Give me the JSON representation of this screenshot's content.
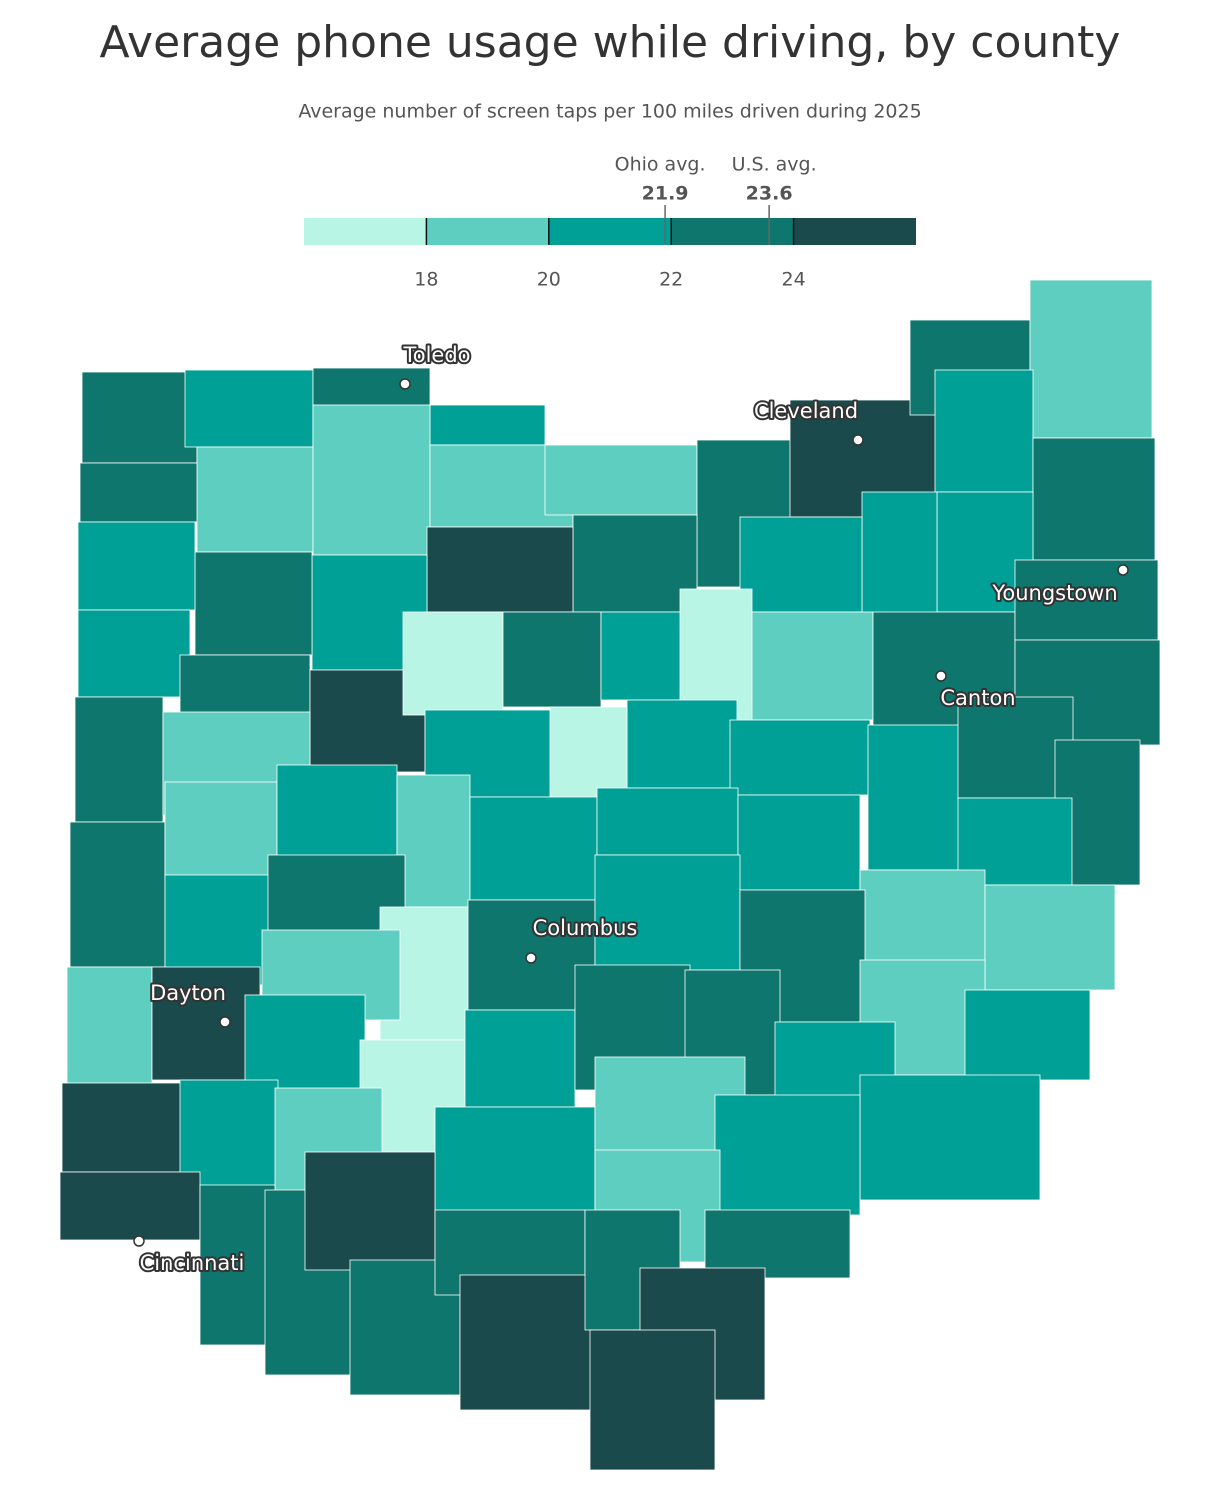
{
  "title": "Average phone usage while driving, by county",
  "subtitle": "Average number of screen taps per 100 miles driven during 2025",
  "legend": {
    "range": [
      16,
      26
    ],
    "ticks": [
      18,
      20,
      22,
      24
    ],
    "colors": [
      "#b9f5e5",
      "#5ecec0",
      "#00a096",
      "#0f766e",
      "#1b4a4c"
    ],
    "markers": [
      {
        "label": "Ohio avg.",
        "value": 21.9
      },
      {
        "label": "U.S. avg.",
        "value": 23.6
      }
    ]
  },
  "cities": [
    "Toledo",
    "Cleveland",
    "Youngstown",
    "Canton",
    "Columbus",
    "Dayton",
    "Cincinnati"
  ]
}
